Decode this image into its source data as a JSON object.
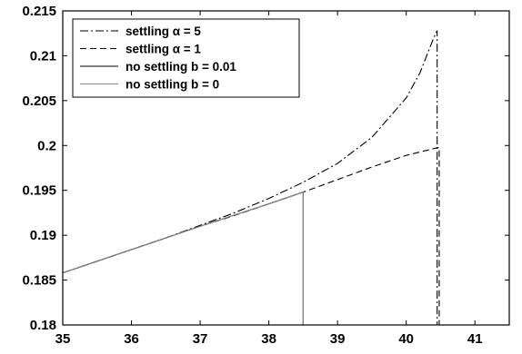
{
  "chart_data": {
    "type": "line",
    "title": "",
    "xlabel": "",
    "ylabel": "",
    "xlim": [
      35,
      41.5
    ],
    "ylim": [
      0.18,
      0.215
    ],
    "x_ticks": [
      35,
      36,
      37,
      38,
      39,
      40,
      41
    ],
    "x_tick_labels": [
      "35",
      "36",
      "37",
      "38",
      "39",
      "40",
      "41"
    ],
    "y_ticks": [
      0.18,
      0.185,
      0.19,
      0.195,
      0.2,
      0.205,
      0.21,
      0.215
    ],
    "y_tick_labels": [
      "0.18",
      "0.185",
      "0.19",
      "0.195",
      "0.2",
      "0.205",
      "0.21",
      "0.215"
    ],
    "grid": false,
    "legend_position": "top-left",
    "series": [
      {
        "name": "settling α = 5",
        "style": "dashdot",
        "color": "#000000",
        "points": [
          [
            35,
            0.1858
          ],
          [
            35.5,
            0.1871
          ],
          [
            36,
            0.1884
          ],
          [
            36.5,
            0.1897
          ],
          [
            37,
            0.1911
          ],
          [
            37.5,
            0.1925
          ],
          [
            38,
            0.1941
          ],
          [
            38.5,
            0.1959
          ],
          [
            39,
            0.198
          ],
          [
            39.5,
            0.2009
          ],
          [
            40,
            0.2053
          ],
          [
            40.2,
            0.2081
          ],
          [
            40.4,
            0.212
          ],
          [
            40.45,
            0.2128
          ],
          [
            40.45,
            0.18
          ]
        ]
      },
      {
        "name": "settling α = 1",
        "style": "dashed",
        "color": "#000000",
        "points": [
          [
            35,
            0.1858
          ],
          [
            35.5,
            0.1871
          ],
          [
            36,
            0.1884
          ],
          [
            36.5,
            0.1897
          ],
          [
            37,
            0.191
          ],
          [
            37.5,
            0.1922
          ],
          [
            38,
            0.1935
          ],
          [
            38.5,
            0.1948
          ],
          [
            39,
            0.1962
          ],
          [
            39.5,
            0.1976
          ],
          [
            40,
            0.1989
          ],
          [
            40.48,
            0.1998
          ],
          [
            40.48,
            0.18
          ]
        ]
      },
      {
        "name": "no settling b = 0.01",
        "style": "solid",
        "color": "#000000",
        "points": [
          [
            35,
            0.1858
          ],
          [
            36,
            0.1884
          ],
          [
            37,
            0.191
          ],
          [
            38,
            0.1935
          ],
          [
            38.5,
            0.1948
          ],
          [
            38.5,
            0.18
          ]
        ]
      },
      {
        "name": "no settling b = 0",
        "style": "solid",
        "color": "#888888",
        "points": [
          [
            35,
            0.1858
          ],
          [
            36,
            0.1884
          ],
          [
            37,
            0.191
          ],
          [
            38,
            0.1935
          ],
          [
            38.5,
            0.1948
          ],
          [
            38.5,
            0.18
          ]
        ]
      }
    ]
  }
}
